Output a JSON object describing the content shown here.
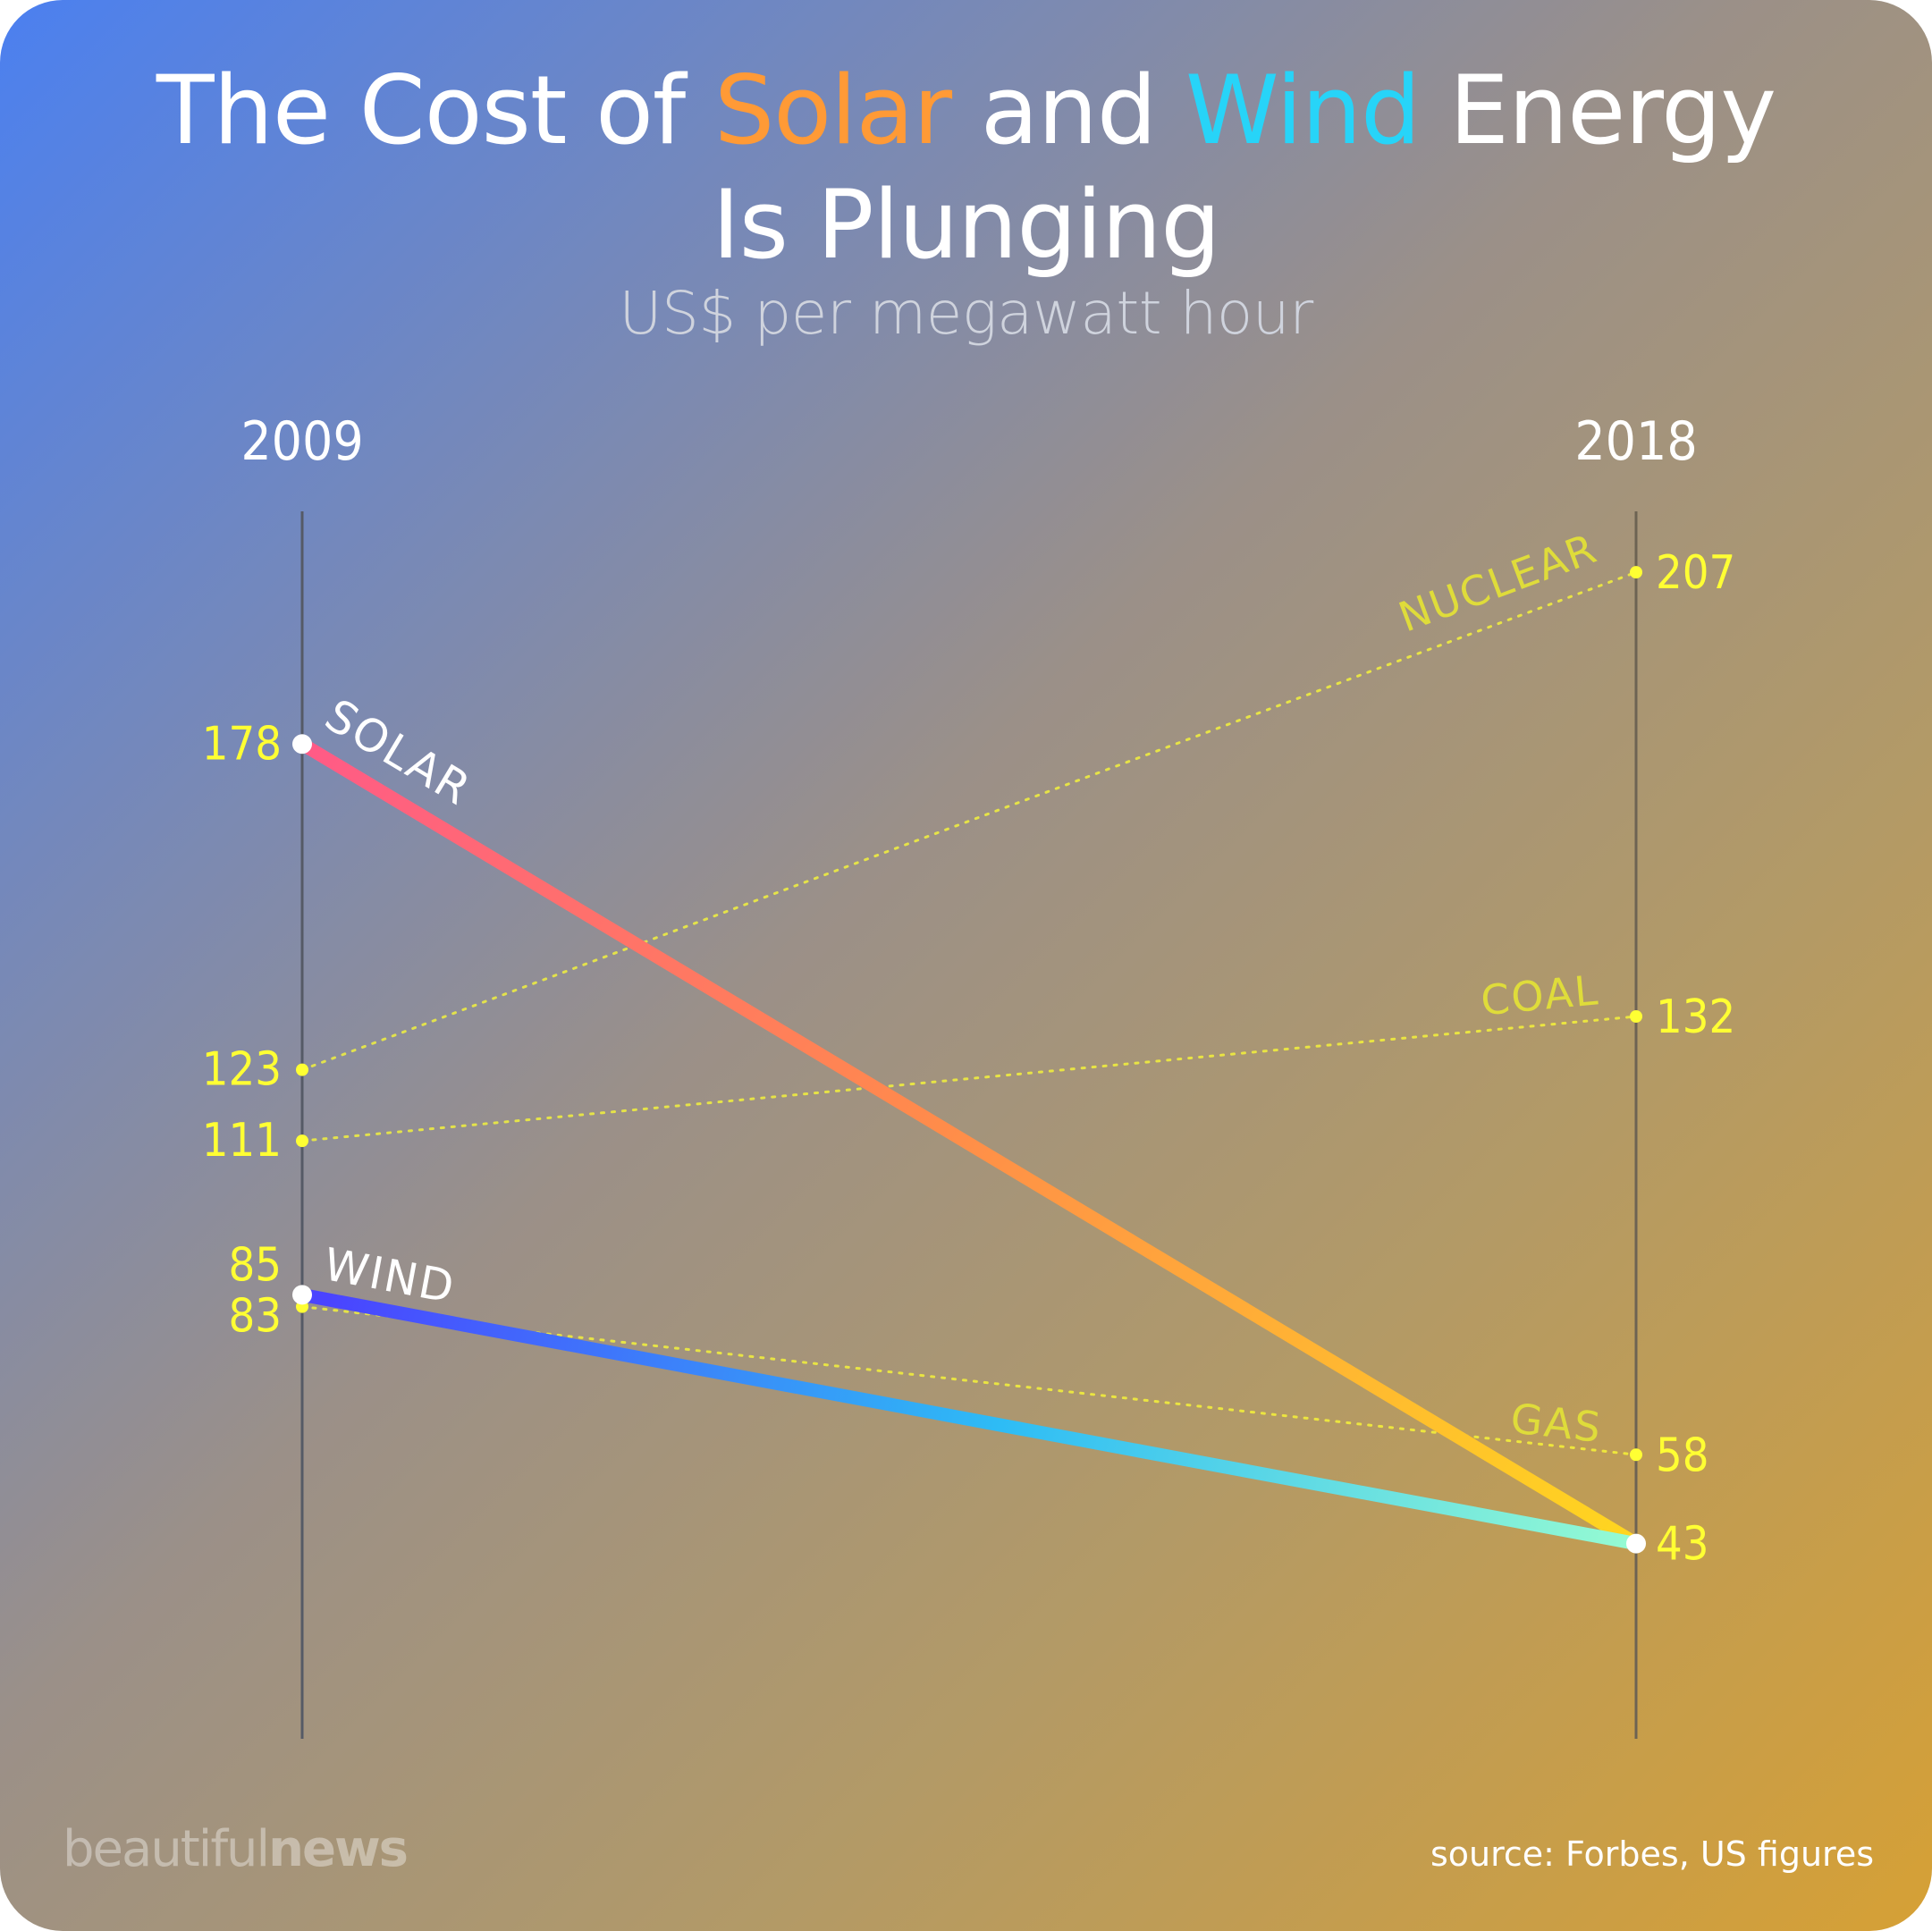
{
  "title": {
    "part1": "The Cost of ",
    "solar": "Solar",
    "part2": " and ",
    "wind": "Wind",
    "part3": " Energy",
    "line2": "Is Plunging"
  },
  "subtitle": "US$ per megawatt hour",
  "logo": {
    "light": "beautiful",
    "bold": "news"
  },
  "source": "source: Forbes, US figures",
  "colors": {
    "solar_start": "#ff5a87",
    "solar_mid": "#ff8c4a",
    "solar_end": "#ffe01a",
    "wind_start": "#4a44ff",
    "wind_mid": "#2ebcf5",
    "wind_end": "#9cffd0",
    "dotted": "#ffff33"
  },
  "chart_data": {
    "type": "line",
    "x": [
      "2009",
      "2018"
    ],
    "ylabel": "US$ per megawatt hour",
    "series": [
      {
        "name": "SOLAR",
        "values": [
          178,
          43
        ],
        "style": "solid"
      },
      {
        "name": "WIND",
        "values": [
          85,
          43
        ],
        "style": "solid"
      },
      {
        "name": "NUCLEAR",
        "values": [
          123,
          207
        ],
        "style": "dotted"
      },
      {
        "name": "COAL",
        "values": [
          111,
          132
        ],
        "style": "dotted"
      },
      {
        "name": "GAS",
        "values": [
          83,
          58
        ],
        "style": "dotted"
      }
    ],
    "left_value_labels": [
      "178",
      "123",
      "111",
      "85",
      "83"
    ],
    "right_value_labels": [
      "207",
      "132",
      "58",
      "43"
    ]
  }
}
